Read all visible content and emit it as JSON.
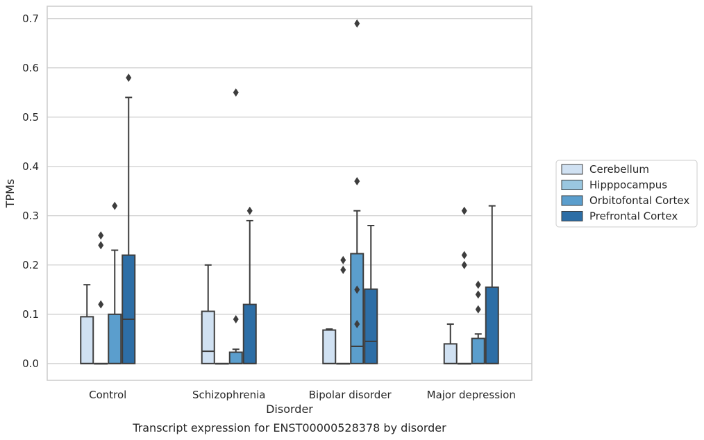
{
  "chart_data": {
    "type": "box",
    "caption": "Transcript expression for ENST00000528378 by disorder",
    "xlabel": "Disorder",
    "ylabel": "TPMs",
    "ylim": [
      -0.034,
      0.725
    ],
    "yticks": [
      0.0,
      0.1,
      0.2,
      0.3,
      0.4,
      0.5,
      0.6,
      0.7
    ],
    "ytick_labels": [
      "0.0",
      "0.1",
      "0.2",
      "0.3",
      "0.4",
      "0.5",
      "0.6",
      "0.7"
    ],
    "grid": "horizontal",
    "legend_position": "right",
    "categories": [
      "Control",
      "Schizophrenia",
      "Bipolar disorder",
      "Major depression"
    ],
    "series": [
      {
        "name": "Cerebellum",
        "color": "#d0e1f2",
        "boxes": [
          {
            "q1": 0.0,
            "median": 0.0,
            "q3": 0.095,
            "whisker_low": 0.0,
            "whisker_high": 0.16,
            "outliers": []
          },
          {
            "q1": 0.0,
            "median": 0.025,
            "q3": 0.106,
            "whisker_low": 0.0,
            "whisker_high": 0.2,
            "outliers": []
          },
          {
            "q1": 0.0,
            "median": 0.0,
            "q3": 0.068,
            "whisker_low": 0.0,
            "whisker_high": 0.07,
            "outliers": []
          },
          {
            "q1": 0.0,
            "median": 0.0,
            "q3": 0.04,
            "whisker_low": 0.0,
            "whisker_high": 0.08,
            "outliers": []
          }
        ]
      },
      {
        "name": "Hipppocampus",
        "color": "#9ac7e0",
        "boxes": [
          {
            "q1": 0.0,
            "median": 0.0,
            "q3": 0.0,
            "whisker_low": 0.0,
            "whisker_high": 0.0,
            "outliers": [
              0.12,
              0.24,
              0.26
            ]
          },
          {
            "q1": 0.0,
            "median": 0.0,
            "q3": 0.0,
            "whisker_low": 0.0,
            "whisker_high": 0.0,
            "outliers": []
          },
          {
            "q1": 0.0,
            "median": 0.0,
            "q3": 0.0,
            "whisker_low": 0.0,
            "whisker_high": 0.0,
            "outliers": [
              0.19,
              0.21
            ]
          },
          {
            "q1": 0.0,
            "median": 0.0,
            "q3": 0.0,
            "whisker_low": 0.0,
            "whisker_high": 0.0,
            "outliers": [
              0.2,
              0.22,
              0.31
            ]
          }
        ]
      },
      {
        "name": "Orbitofontal Cortex",
        "color": "#5b9ecd",
        "boxes": [
          {
            "q1": 0.0,
            "median": 0.0,
            "q3": 0.1,
            "whisker_low": 0.0,
            "whisker_high": 0.23,
            "outliers": [
              0.32
            ]
          },
          {
            "q1": 0.0,
            "median": 0.0,
            "q3": 0.023,
            "whisker_low": 0.0,
            "whisker_high": 0.029,
            "outliers": [
              0.09,
              0.55
            ]
          },
          {
            "q1": 0.0,
            "median": 0.035,
            "q3": 0.223,
            "whisker_low": 0.0,
            "whisker_high": 0.31,
            "outliers": [
              0.08,
              0.15,
              0.37,
              0.69
            ]
          },
          {
            "q1": 0.0,
            "median": 0.0,
            "q3": 0.051,
            "whisker_low": 0.0,
            "whisker_high": 0.06,
            "outliers": [
              0.11,
              0.14,
              0.16
            ]
          }
        ]
      },
      {
        "name": "Prefrontal Cortex",
        "color": "#2d6ea6",
        "boxes": [
          {
            "q1": 0.0,
            "median": 0.09,
            "q3": 0.22,
            "whisker_low": 0.0,
            "whisker_high": 0.54,
            "outliers": [
              0.58
            ]
          },
          {
            "q1": 0.0,
            "median": 0.0,
            "q3": 0.12,
            "whisker_low": 0.0,
            "whisker_high": 0.29,
            "outliers": [
              0.31
            ]
          },
          {
            "q1": 0.0,
            "median": 0.045,
            "q3": 0.151,
            "whisker_low": 0.0,
            "whisker_high": 0.28,
            "outliers": []
          },
          {
            "q1": 0.0,
            "median": 0.0,
            "q3": 0.155,
            "whisker_low": 0.0,
            "whisker_high": 0.32,
            "outliers": []
          }
        ]
      }
    ]
  }
}
